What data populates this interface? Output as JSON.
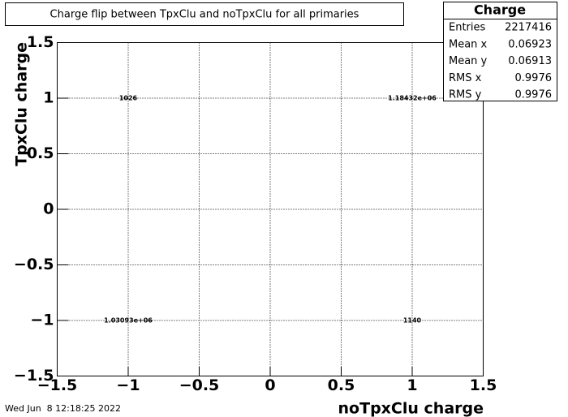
{
  "chart_data": {
    "type": "text2d",
    "title": "Charge flip between TpxClu and noTpxClu for all primaries",
    "x_label": "noTpxClu charge",
    "y_label": "TpxClu charge",
    "x": [
      -1,
      1,
      -1,
      1
    ],
    "y": [
      1,
      1,
      -1,
      -1
    ],
    "values": [
      1026,
      1184320,
      1030930,
      1140
    ],
    "value_labels": [
      "1026",
      "1.18432e+06",
      "1.03093e+06",
      "1140"
    ],
    "xlim": [
      -1.5,
      1.5
    ],
    "ylim": [
      -1.5,
      1.5
    ],
    "xticks": [
      {
        "value": -1.5,
        "label": "−1.5"
      },
      {
        "value": -1,
        "label": "−1"
      },
      {
        "value": -0.5,
        "label": "−0.5"
      },
      0,
      0.5,
      1,
      1.5
    ],
    "yticks": [
      {
        "value": -1.5,
        "label": "−1.5"
      },
      {
        "value": -1,
        "label": "−1"
      },
      {
        "value": -0.5,
        "label": "−0.5"
      },
      0,
      0.5,
      1,
      1.5
    ],
    "grid": true,
    "stats": {
      "title": "Charge",
      "rows": [
        {
          "name": "Entries",
          "value": 2217416
        },
        {
          "name": "Mean x",
          "value": 0.06923
        },
        {
          "name": "Mean y",
          "value": 0.06913
        },
        {
          "name": "RMS x",
          "value": 0.9976
        },
        {
          "name": "RMS y",
          "value": 0.9976
        }
      ]
    },
    "timestamp": "Wed Jun  8 12:18:25 2022"
  }
}
